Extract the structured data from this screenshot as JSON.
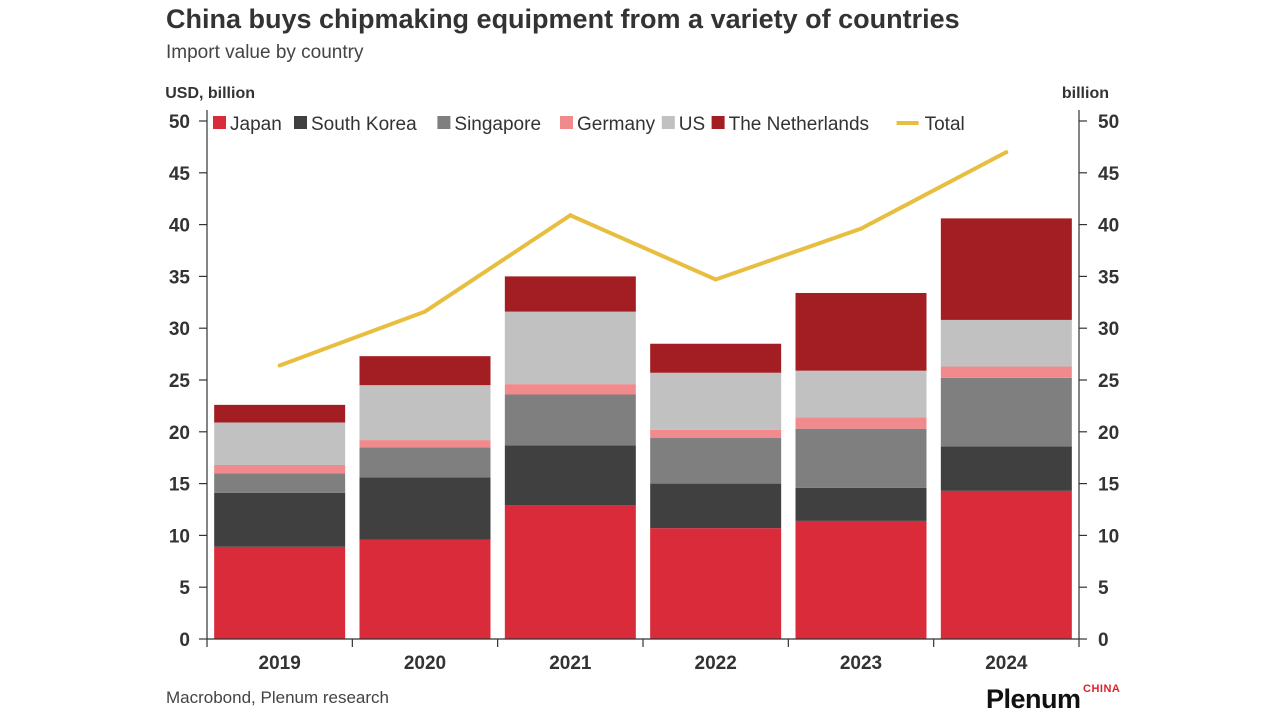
{
  "chart_data": {
    "type": "bar",
    "stacked": true,
    "title": "China buys chipmaking equipment from a variety of countries",
    "subtitle": "Import value by country",
    "ylabel_left": "USD, billion",
    "ylabel_right": "billion",
    "ylim": [
      0,
      50
    ],
    "yticks": [
      0,
      5,
      10,
      15,
      20,
      25,
      30,
      35,
      40,
      45,
      50
    ],
    "categories": [
      "2019",
      "2020",
      "2021",
      "2022",
      "2023",
      "2024"
    ],
    "legend_position": "top",
    "grid": false,
    "series": [
      {
        "name": "Japan",
        "kind": "bar",
        "color": "#d92b3a",
        "values": [
          8.9,
          9.6,
          12.9,
          10.7,
          11.4,
          14.3
        ]
      },
      {
        "name": "South Korea",
        "kind": "bar",
        "color": "#404040",
        "values": [
          5.2,
          6.0,
          5.8,
          4.3,
          3.2,
          4.3
        ]
      },
      {
        "name": "Singapore",
        "kind": "bar",
        "color": "#7f7f7f",
        "values": [
          1.9,
          2.9,
          4.9,
          4.4,
          5.7,
          6.6
        ]
      },
      {
        "name": "Germany",
        "kind": "bar",
        "color": "#f08a8c",
        "values": [
          0.8,
          0.7,
          1.0,
          0.8,
          1.1,
          1.1
        ]
      },
      {
        "name": "US",
        "kind": "bar",
        "color": "#c1c1c1",
        "values": [
          4.1,
          5.3,
          7.0,
          5.5,
          4.5,
          4.5
        ]
      },
      {
        "name": "The Netherlands",
        "kind": "bar",
        "color": "#a21e22",
        "values": [
          1.7,
          2.8,
          3.4,
          2.8,
          7.5,
          9.8
        ]
      },
      {
        "name": "Total",
        "kind": "line",
        "color": "#e8be40",
        "values": [
          26.4,
          31.6,
          40.9,
          34.7,
          39.6,
          47.0
        ]
      }
    ]
  },
  "footer": {
    "source": "Macrobond, Plenum research",
    "brand": "Plenum",
    "brand_sub": "CHINA"
  }
}
